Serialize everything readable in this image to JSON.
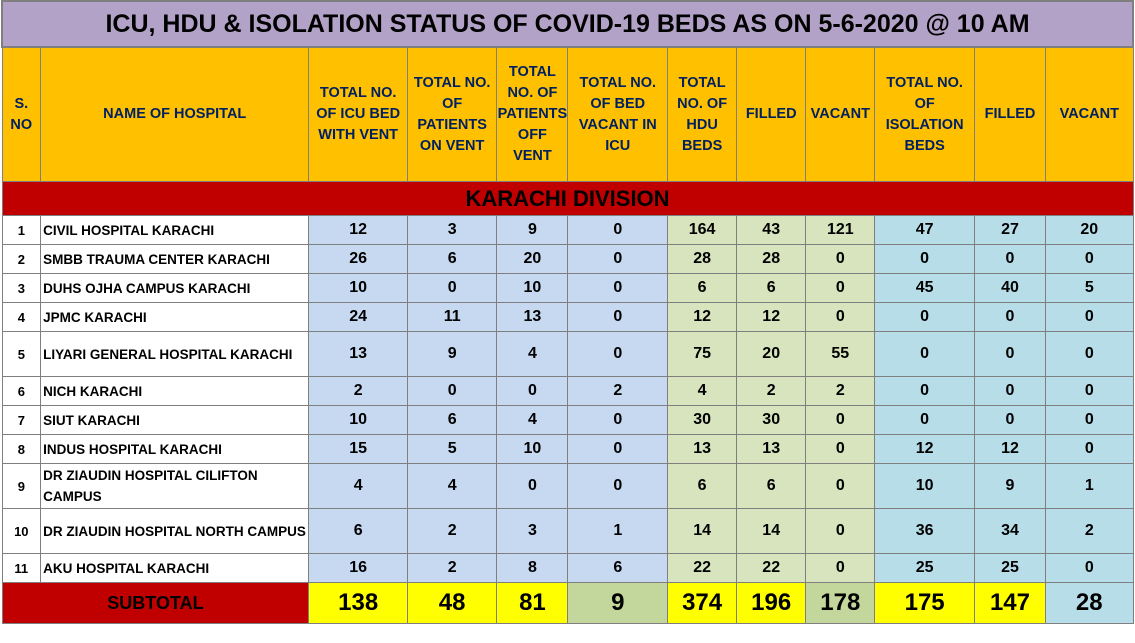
{
  "title": "ICU, HDU & ISOLATION STATUS OF COVID-19 BEDS AS ON 5-6-2020 @ 10 AM",
  "headers": {
    "sno": "S. NO",
    "name": "NAME OF HOSPITAL",
    "icu_total": "TOTAL NO. OF ICU BED WITH VENT",
    "on_vent": "TOTAL NO. OF PATIENTS ON VENT",
    "off_vent": "TOTAL NO. OF PATIENTS OFF VENT",
    "icu_vacant": "TOTAL NO. OF BED VACANT IN ICU",
    "hdu_total": "TOTAL NO. OF HDU BEDS",
    "hdu_filled": "FILLED",
    "hdu_vacant": "VACANT",
    "iso_total": "TOTAL NO. OF ISOLATION BEDS",
    "iso_filled": "FILLED",
    "iso_vacant": "VACANT"
  },
  "division": "KARACHI DIVISION",
  "rows": [
    {
      "sno": "1",
      "name": "CIVIL HOSPITAL KARACHI",
      "icu_total": "12",
      "on_vent": "3",
      "off_vent": "9",
      "icu_vacant": "0",
      "hdu_total": "164",
      "hdu_filled": "43",
      "hdu_vacant": "121",
      "iso_total": "47",
      "iso_filled": "27",
      "iso_vacant": "20"
    },
    {
      "sno": "2",
      "name": "SMBB TRAUMA CENTER KARACHI",
      "icu_total": "26",
      "on_vent": "6",
      "off_vent": "20",
      "icu_vacant": "0",
      "hdu_total": "28",
      "hdu_filled": "28",
      "hdu_vacant": "0",
      "iso_total": "0",
      "iso_filled": "0",
      "iso_vacant": "0"
    },
    {
      "sno": "3",
      "name": "DUHS OJHA CAMPUS KARACHI",
      "icu_total": "10",
      "on_vent": "0",
      "off_vent": "10",
      "icu_vacant": "0",
      "hdu_total": "6",
      "hdu_filled": "6",
      "hdu_vacant": "0",
      "iso_total": "45",
      "iso_filled": "40",
      "iso_vacant": "5"
    },
    {
      "sno": "4",
      "name": "JPMC KARACHI",
      "icu_total": "24",
      "on_vent": "11",
      "off_vent": "13",
      "icu_vacant": "0",
      "hdu_total": "12",
      "hdu_filled": "12",
      "hdu_vacant": "0",
      "iso_total": "0",
      "iso_filled": "0",
      "iso_vacant": "0"
    },
    {
      "sno": "5",
      "name": "LIYARI GENERAL HOSPITAL KARACHI",
      "icu_total": "13",
      "on_vent": "9",
      "off_vent": "4",
      "icu_vacant": "0",
      "hdu_total": "75",
      "hdu_filled": "20",
      "hdu_vacant": "55",
      "iso_total": "0",
      "iso_filled": "0",
      "iso_vacant": "0"
    },
    {
      "sno": "6",
      "name": "NICH KARACHI",
      "icu_total": "2",
      "on_vent": "0",
      "off_vent": "0",
      "icu_vacant": "2",
      "hdu_total": "4",
      "hdu_filled": "2",
      "hdu_vacant": "2",
      "iso_total": "0",
      "iso_filled": "0",
      "iso_vacant": "0"
    },
    {
      "sno": "7",
      "name": "SIUT KARACHI",
      "icu_total": "10",
      "on_vent": "6",
      "off_vent": "4",
      "icu_vacant": "0",
      "hdu_total": "30",
      "hdu_filled": "30",
      "hdu_vacant": "0",
      "iso_total": "0",
      "iso_filled": "0",
      "iso_vacant": "0"
    },
    {
      "sno": "8",
      "name": "INDUS HOSPITAL KARACHI",
      "icu_total": "15",
      "on_vent": "5",
      "off_vent": "10",
      "icu_vacant": "0",
      "hdu_total": "13",
      "hdu_filled": "13",
      "hdu_vacant": "0",
      "iso_total": "12",
      "iso_filled": "12",
      "iso_vacant": "0"
    },
    {
      "sno": "9",
      "name": "DR ZIAUDIN HOSPITAL CILIFTON CAMPUS",
      "icu_total": "4",
      "on_vent": "4",
      "off_vent": "0",
      "icu_vacant": "0",
      "hdu_total": "6",
      "hdu_filled": "6",
      "hdu_vacant": "0",
      "iso_total": "10",
      "iso_filled": "9",
      "iso_vacant": "1"
    },
    {
      "sno": "10",
      "name": "DR ZIAUDIN HOSPITAL NORTH CAMPUS",
      "icu_total": "6",
      "on_vent": "2",
      "off_vent": "3",
      "icu_vacant": "1",
      "hdu_total": "14",
      "hdu_filled": "14",
      "hdu_vacant": "0",
      "iso_total": "36",
      "iso_filled": "34",
      "iso_vacant": "2"
    },
    {
      "sno": "11",
      "name": "AKU HOSPITAL KARACHI",
      "icu_total": "16",
      "on_vent": "2",
      "off_vent": "8",
      "icu_vacant": "6",
      "hdu_total": "22",
      "hdu_filled": "22",
      "hdu_vacant": "0",
      "iso_total": "25",
      "iso_filled": "25",
      "iso_vacant": "0"
    }
  ],
  "subtotal": {
    "label": "SUBTOTAL",
    "icu_total": "138",
    "on_vent": "48",
    "off_vent": "81",
    "icu_vacant": "9",
    "hdu_total": "374",
    "hdu_filled": "196",
    "hdu_vacant": "178",
    "iso_total": "175",
    "iso_filled": "147",
    "iso_vacant": "28"
  }
}
